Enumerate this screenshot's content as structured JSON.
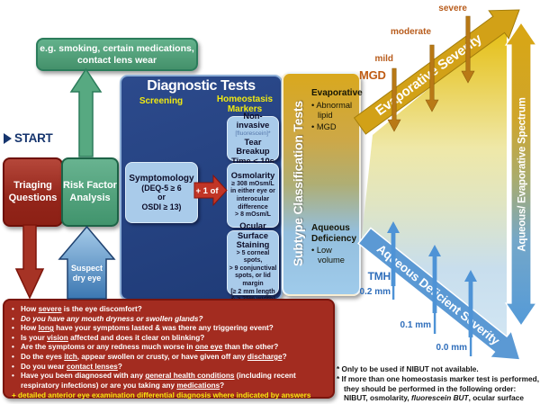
{
  "start_label": "START",
  "note": {
    "line1": "e.g. smoking, certain medications,",
    "line2": "contact lens wear"
  },
  "triaging_label": "Triaging Questions",
  "risk_label": "Risk Factor Analysis",
  "suspect_arrow": {
    "line1": "Suspect",
    "line2": "dry eye"
  },
  "diagnostic": {
    "title": "Diagnostic Tests",
    "screening_label": "Screening",
    "homeostasis_line1": "Homeostasis",
    "homeostasis_line2": "Markers",
    "symptomology": {
      "title": "Symptomology",
      "line1": "(DEQ-5 ≥ 6",
      "line2": "or",
      "line3": "OSDI ≥ 13)"
    },
    "plus_one_label": "+ 1 of",
    "nibut": {
      "title": "Non-invasive",
      "fluorescein": "[fluorescein]*",
      "line1": "Tear Breakup",
      "line2": "Time < 10s"
    },
    "osmolarity": {
      "title": "Osmolarity",
      "lines": [
        "≥ 308 mOsm/L",
        "in either eye or",
        "interocular difference",
        "> 8 mOsm/L"
      ]
    },
    "staining": {
      "title_line1": "Ocular Surface",
      "title_line2": "Staining",
      "lines": [
        "> 5 corneal spots,",
        "> 9 conjunctival",
        "spots, or lid margin",
        "[≥ 2 mm length",
        "& ≥ 25% width]"
      ]
    }
  },
  "subtype": {
    "vertical_label": "Subtype Classification Tests",
    "evaporative": {
      "title": "Evaporative",
      "bullets": [
        "Abnormal lipid",
        "MGD"
      ]
    },
    "aqueous": {
      "title": "Aqueous Deficiency",
      "bullets": [
        "Low volume"
      ]
    }
  },
  "evaporative_axis": {
    "label": "Evaporative Severity",
    "mgd_label": "MGD",
    "levels": [
      "mild",
      "moderate",
      "severe"
    ]
  },
  "aqueous_axis": {
    "label": "Aqueous Deficient Severity",
    "tmh_label": "TMH",
    "levels": [
      "0.2 mm",
      "0.1 mm",
      "0.0 mm"
    ]
  },
  "spectrum_axis": {
    "label": "Aqueous/ Evaporative Spectrum"
  },
  "questions": {
    "items": [
      {
        "segments": [
          {
            "t": "How "
          },
          {
            "t": "severe",
            "u": true
          },
          {
            "t": " is the eye discomfort?"
          }
        ]
      },
      {
        "italic": true,
        "segments": [
          {
            "t": "Do you have any mouth dryness or swollen glands?"
          }
        ]
      },
      {
        "segments": [
          {
            "t": "How "
          },
          {
            "t": "long",
            "u": true
          },
          {
            "t": " have your symptoms lasted & was there any triggering event?"
          }
        ]
      },
      {
        "segments": [
          {
            "t": "Is your "
          },
          {
            "t": "vision",
            "u": true
          },
          {
            "t": " affected and does it clear on blinking?"
          }
        ]
      },
      {
        "segments": [
          {
            "t": "Are the symptoms or any redness much worse in "
          },
          {
            "t": "one eye",
            "u": true
          },
          {
            "t": " than the other?"
          }
        ]
      },
      {
        "segments": [
          {
            "t": "Do the eyes "
          },
          {
            "t": "itch",
            "u": true
          },
          {
            "t": ", appear swollen or crusty, or have given off any "
          },
          {
            "t": "discharge",
            "u": true
          },
          {
            "t": "?"
          }
        ]
      },
      {
        "segments": [
          {
            "t": "Do you wear "
          },
          {
            "t": "contact lenses",
            "u": true
          },
          {
            "t": "?"
          }
        ]
      },
      {
        "segments": [
          {
            "t": "Have you been diagnosed with any "
          },
          {
            "t": "general health conditions",
            "u": true
          },
          {
            "t": " (including recent respiratory infections) or are you taking any "
          },
          {
            "t": "medications",
            "u": true
          },
          {
            "t": "?"
          }
        ]
      }
    ],
    "footer": "+ detailed anterior eye examination differential diagnosis where indicated by answers"
  },
  "footnotes": [
    {
      "segments": [
        {
          "t": "* Only to be used if NIBUT not available."
        }
      ]
    },
    {
      "segments": [
        {
          "t": "* If more than one homeostasis marker test is performed, they should be performed in the following order: NIBUT, osmolarity, "
        },
        {
          "t": "fluorescein BUT",
          "i": true
        },
        {
          "t": ", ocular surface staining."
        }
      ]
    }
  ],
  "colors": {
    "navy_panel": "#24407e",
    "light_blue_box": "#a9cbea",
    "red_box": "#a32c20",
    "green_box": "#4fa381",
    "gold": "#d2a117",
    "blue_arrow": "#5b99d4",
    "yellow_label": "#f0e912",
    "severity_text": "#b85c1c"
  }
}
